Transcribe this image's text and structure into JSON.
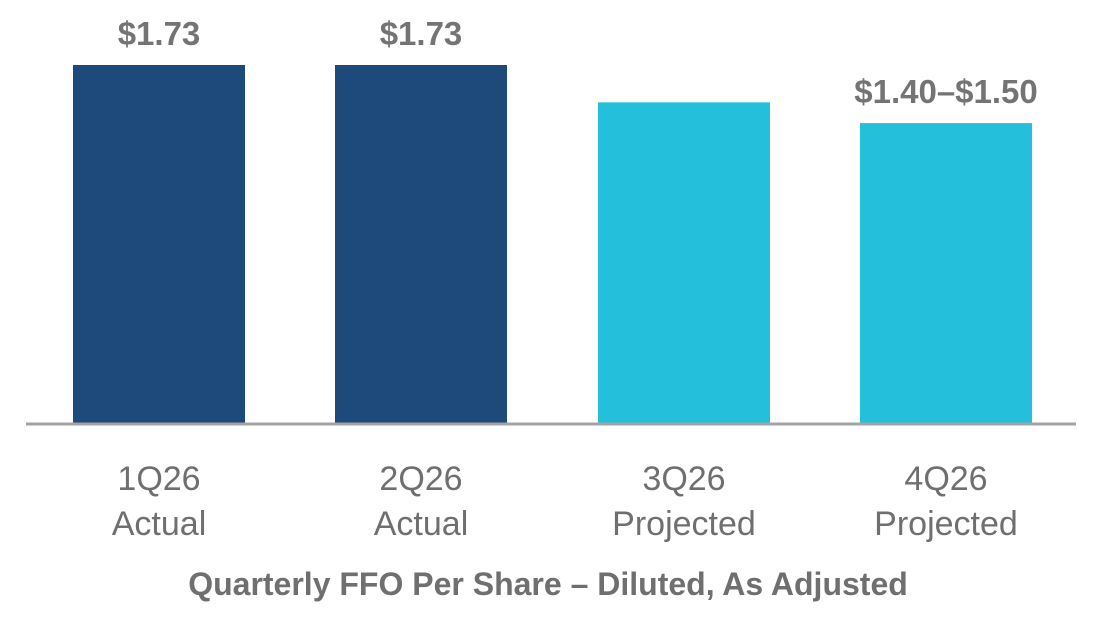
{
  "chart_data": {
    "type": "bar",
    "categories": [
      [
        "1Q26",
        "Actual"
      ],
      [
        "2Q26",
        "Actual"
      ],
      [
        "3Q26",
        "Projected"
      ],
      [
        "4Q26",
        "Projected"
      ]
    ],
    "values": [
      1.73,
      1.73,
      1.55,
      1.45
    ],
    "value_labels": [
      "$1.73",
      "$1.73",
      "",
      "$1.40–$1.50"
    ],
    "colors": [
      "#1d4a7a",
      "#1d4a7a",
      "#24bfdb",
      "#24bfdb"
    ],
    "title": "",
    "xlabel": "Quarterly FFO Per Share – Diluted, As Adjusted",
    "ylabel": "",
    "ylim": [
      0,
      1.73
    ],
    "grid": false,
    "legend": "none"
  },
  "colors": {
    "axis": "#a3a3a3",
    "label_text": "#6f6f6f"
  }
}
